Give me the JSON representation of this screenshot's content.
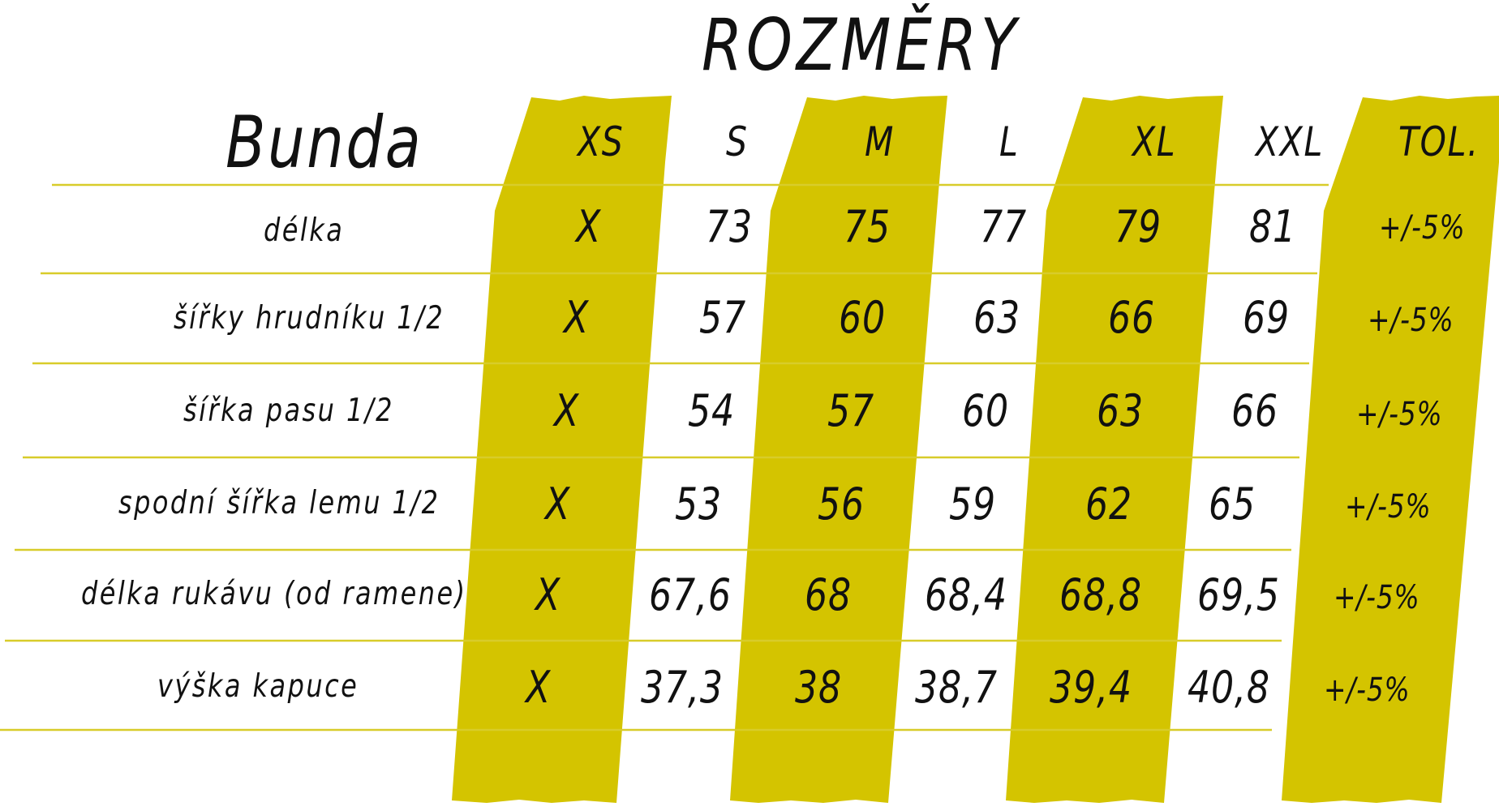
{
  "title": "ROZMĚRY",
  "garment": "Bunda",
  "header": {
    "sizes": [
      "XS",
      "S",
      "M",
      "L",
      "XL",
      "XXL"
    ],
    "tolerance": "TOL."
  },
  "rows": [
    {
      "label": "délka",
      "values": [
        "X",
        "73",
        "75",
        "77",
        "79",
        "81"
      ],
      "tolerance": "+/-5%"
    },
    {
      "label": "šířky hrudníku 1/2",
      "values": [
        "X",
        "57",
        "60",
        "63",
        "66",
        "69"
      ],
      "tolerance": "+/-5%"
    },
    {
      "label": "šířka pasu 1/2",
      "values": [
        "X",
        "54",
        "57",
        "60",
        "63",
        "66"
      ],
      "tolerance": "+/-5%"
    },
    {
      "label": "spodní šířka lemu 1/2",
      "values": [
        "X",
        "53",
        "56",
        "59",
        "62",
        "65"
      ],
      "tolerance": "+/-5%"
    },
    {
      "label": "délka rukávu (od ramene)",
      "values": [
        "X",
        "67,6",
        "68",
        "68,4",
        "68,8",
        "69,5"
      ],
      "tolerance": "+/-5%"
    },
    {
      "label": "výška kapuce",
      "values": [
        "X",
        "37,3",
        "38",
        "38,7",
        "39,4",
        "40,8"
      ],
      "tolerance": "+/-5%"
    }
  ],
  "colors": {
    "highlight": "#d4c400",
    "rule": "#d8cc2a",
    "text": "#111111"
  }
}
